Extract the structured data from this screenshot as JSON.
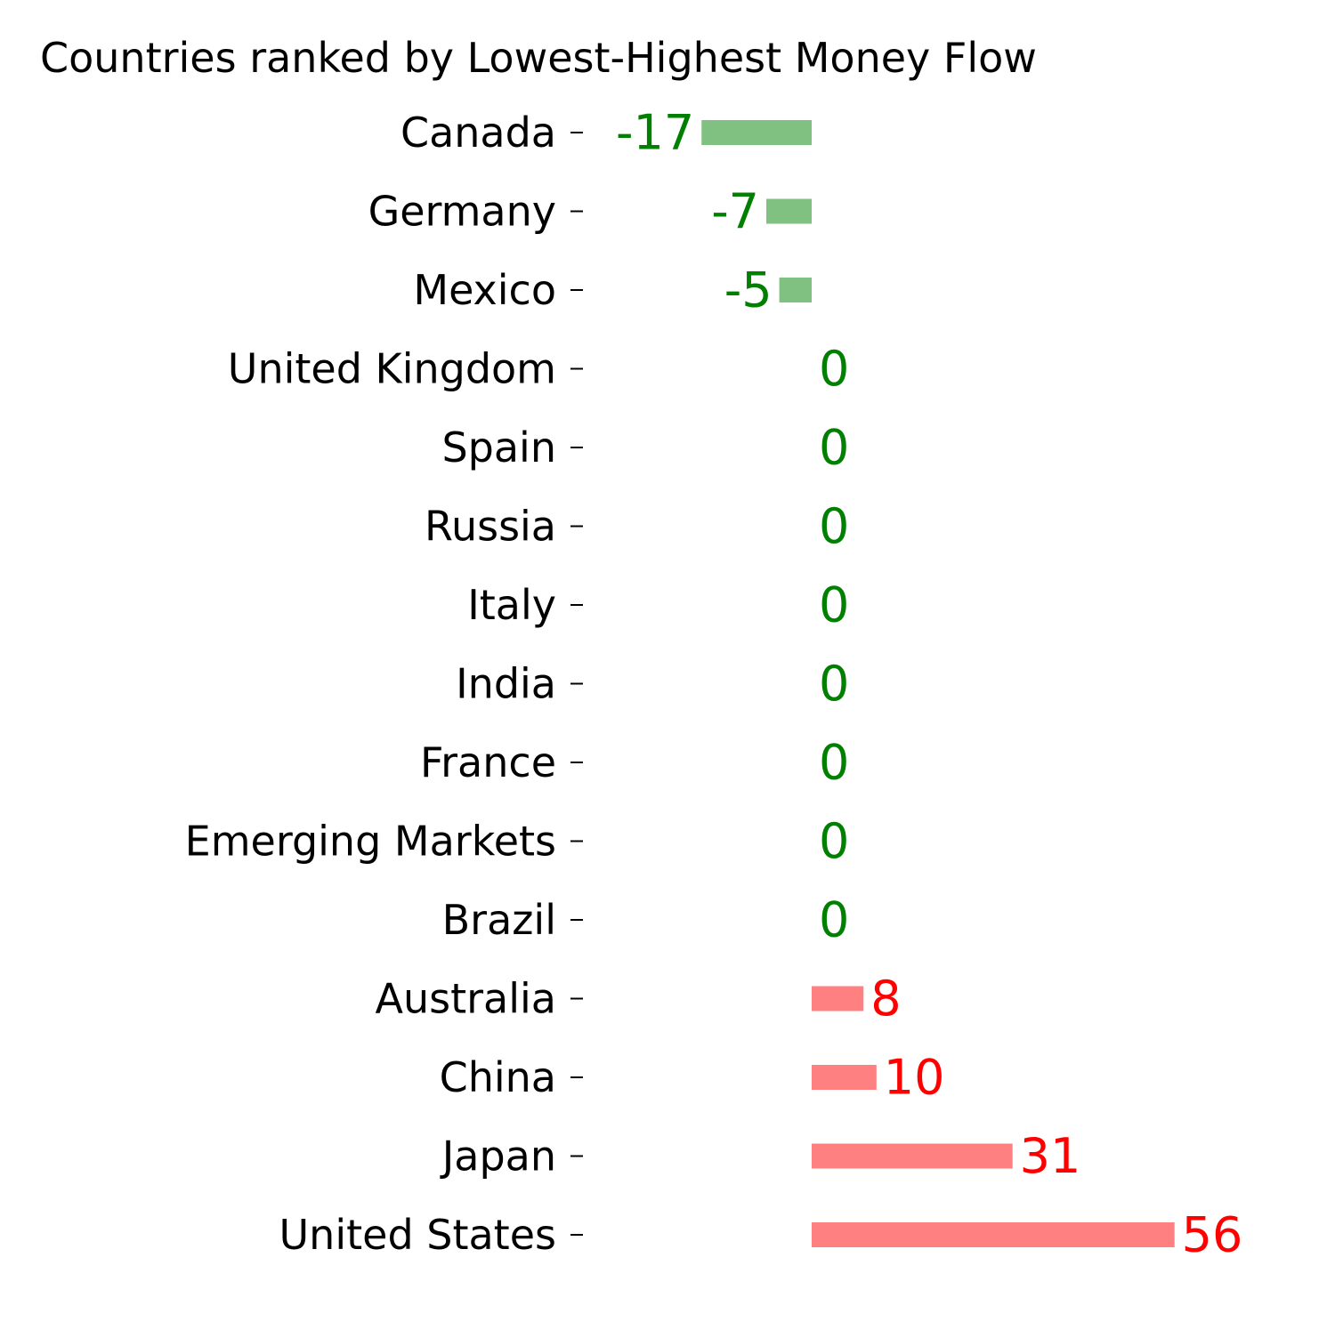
{
  "chart_data": {
    "type": "bar",
    "orientation": "horizontal",
    "title": "Countries ranked by Lowest-Highest Money Flow",
    "xlabel": "",
    "ylabel": "",
    "categories": [
      "Canada",
      "Germany",
      "Mexico",
      "United Kingdom",
      "Spain",
      "Russia",
      "Italy",
      "India",
      "France",
      "Emerging Markets",
      "Brazil",
      "Australia",
      "China",
      "Japan",
      "United States"
    ],
    "values": [
      -17,
      -7,
      -5,
      0,
      0,
      0,
      0,
      0,
      0,
      0,
      0,
      8,
      10,
      31,
      56
    ],
    "xlim": [
      -35,
      70
    ],
    "grid": false,
    "legend": "none",
    "colors": {
      "negative_bar": "#80c080",
      "positive_bar": "#ff8080",
      "negative_label": "#008000",
      "positive_label": "#ff0000",
      "zero_label": "#008000",
      "axis_text": "#000000"
    }
  }
}
